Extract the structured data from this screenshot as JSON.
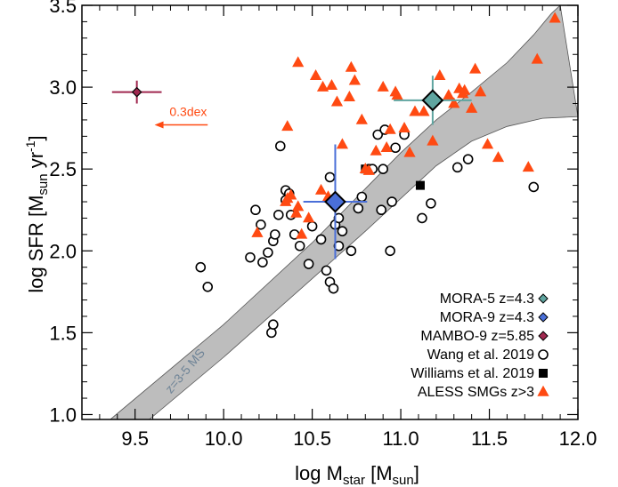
{
  "chart_data": {
    "type": "scatter",
    "xlabel_main": "log M",
    "xlabel_sub": "star",
    "xlabel_unit_main": " [M",
    "xlabel_unit_sub": "sun",
    "xlabel_unit_end": "]",
    "ylabel_main": "log SFR [M",
    "ylabel_sub": "sun",
    "ylabel_mid": " yr",
    "ylabel_sup": "-1",
    "ylabel_end": "]",
    "xlim": [
      9.2,
      12.0
    ],
    "ylim": [
      0.97,
      3.5
    ],
    "xticks": [
      9.5,
      10.0,
      10.5,
      11.0,
      11.5,
      12.0
    ],
    "xtick_labels": [
      "9.5",
      "10.0",
      "10.5",
      "11.0",
      "11.5",
      "12.0"
    ],
    "yticks": [
      1.0,
      1.5,
      2.0,
      2.5,
      3.0,
      3.5
    ],
    "ytick_labels": [
      "1.0",
      "1.5",
      "2.0",
      "2.5",
      "3.0",
      "3.5"
    ],
    "ms_band": {
      "label": "z=3-5 MS",
      "upper": [
        [
          9.36,
          0.97
        ],
        [
          10.0,
          1.55
        ],
        [
          10.5,
          2.05
        ],
        [
          10.8,
          2.38
        ],
        [
          11.0,
          2.6
        ],
        [
          11.2,
          2.8
        ],
        [
          11.4,
          2.97
        ],
        [
          11.6,
          3.15
        ],
        [
          11.75,
          3.32
        ],
        [
          11.85,
          3.45
        ],
        [
          11.9,
          3.5
        ]
      ],
      "lower": [
        [
          9.58,
          0.97
        ],
        [
          10.0,
          1.35
        ],
        [
          10.5,
          1.83
        ],
        [
          10.8,
          2.12
        ],
        [
          11.0,
          2.32
        ],
        [
          11.2,
          2.52
        ],
        [
          11.4,
          2.67
        ],
        [
          11.6,
          2.76
        ],
        [
          11.8,
          2.81
        ],
        [
          12.0,
          2.82
        ]
      ],
      "color": "#bdbdbd"
    },
    "series": [
      {
        "name": "MORA-5 z=4.3",
        "marker": "diamond",
        "color": "#5fa5a0",
        "points": [
          {
            "x": 11.18,
            "y": 2.92,
            "xerr": 0.22,
            "yerr": 0.15
          }
        ]
      },
      {
        "name": "MORA-9 z=4.3",
        "marker": "diamond",
        "color": "#4a6fd8",
        "points": [
          {
            "x": 10.63,
            "y": 2.3,
            "xerr": 0.18,
            "yerr": 0.35
          }
        ]
      },
      {
        "name": "MAMBO-9 z=5.85",
        "marker": "diamond-small",
        "color": "#a0284f",
        "points": [
          {
            "x": 9.51,
            "y": 2.97,
            "xerr": 0.14,
            "yerr": 0.07
          }
        ]
      },
      {
        "name": "Wang et al. 2019",
        "marker": "open-circle",
        "color": "#000000",
        "x": [
          9.87,
          9.91,
          10.18,
          10.21,
          10.15,
          10.22,
          10.25,
          10.28,
          10.29,
          10.31,
          10.32,
          10.35,
          10.35,
          10.37,
          10.27,
          10.28,
          10.38,
          10.4,
          10.43,
          10.48,
          10.5,
          10.55,
          10.58,
          10.6,
          10.62,
          10.63,
          10.65,
          10.65,
          10.67,
          10.72,
          10.76,
          10.78,
          10.82,
          10.84,
          10.89,
          10.94,
          10.95,
          10.97,
          11.02,
          11.12,
          11.17,
          11.32,
          11.38,
          11.75,
          10.87,
          10.91,
          10.9,
          10.6
        ],
        "y": [
          1.9,
          1.78,
          2.25,
          2.16,
          1.96,
          1.93,
          1.99,
          2.06,
          2.1,
          2.22,
          2.64,
          2.31,
          2.37,
          2.35,
          1.5,
          1.55,
          2.22,
          2.1,
          2.03,
          1.92,
          2.15,
          2.07,
          1.88,
          1.81,
          1.77,
          2.16,
          2.2,
          2.03,
          2.12,
          2.0,
          2.26,
          2.33,
          2.5,
          2.5,
          2.25,
          2.0,
          2.3,
          2.63,
          2.71,
          2.2,
          2.29,
          2.51,
          2.56,
          2.39,
          2.71,
          2.74,
          2.5,
          2.45
        ]
      },
      {
        "name": "Williams et al. 2019",
        "marker": "filled-square",
        "color": "#000000",
        "x": [
          10.8,
          11.11
        ],
        "y": [
          2.5,
          2.4
        ]
      },
      {
        "name": "ALESS SMGs z>3",
        "marker": "triangle",
        "color": "#ff4a12",
        "x": [
          10.19,
          10.35,
          10.38,
          10.36,
          10.42,
          10.48,
          10.52,
          10.56,
          10.61,
          10.64,
          10.67,
          10.71,
          10.72,
          10.74,
          10.78,
          10.8,
          10.82,
          10.86,
          10.9,
          10.92,
          10.94,
          10.97,
          11.02,
          11.05,
          11.08,
          11.13,
          11.18,
          11.22,
          11.27,
          11.3,
          11.33,
          11.35,
          11.36,
          11.4,
          11.45,
          11.42,
          11.49,
          11.55,
          11.72,
          11.77,
          11.87,
          10.36,
          10.41,
          10.44,
          10.55,
          10.59,
          10.98,
          10.42
        ],
        "y": [
          2.11,
          2.3,
          2.34,
          2.76,
          3.15,
          2.2,
          3.07,
          3.0,
          3.01,
          2.91,
          2.65,
          2.94,
          3.12,
          3.04,
          2.8,
          2.5,
          2.49,
          2.61,
          3.0,
          2.63,
          2.74,
          2.97,
          2.75,
          2.6,
          2.85,
          2.85,
          2.67,
          3.07,
          2.95,
          2.9,
          2.99,
          2.96,
          2.98,
          2.87,
          2.97,
          3.11,
          2.65,
          2.57,
          2.51,
          3.17,
          3.42,
          2.32,
          2.23,
          2.1,
          2.37,
          2.33,
          2.95,
          2.27
        ]
      }
    ],
    "arrow": {
      "label": "0.3dex",
      "x_from": 9.91,
      "x_to": 9.61,
      "y": 2.9,
      "color": "#ff4a12"
    },
    "legend": {
      "placement": "bottom-right"
    }
  }
}
